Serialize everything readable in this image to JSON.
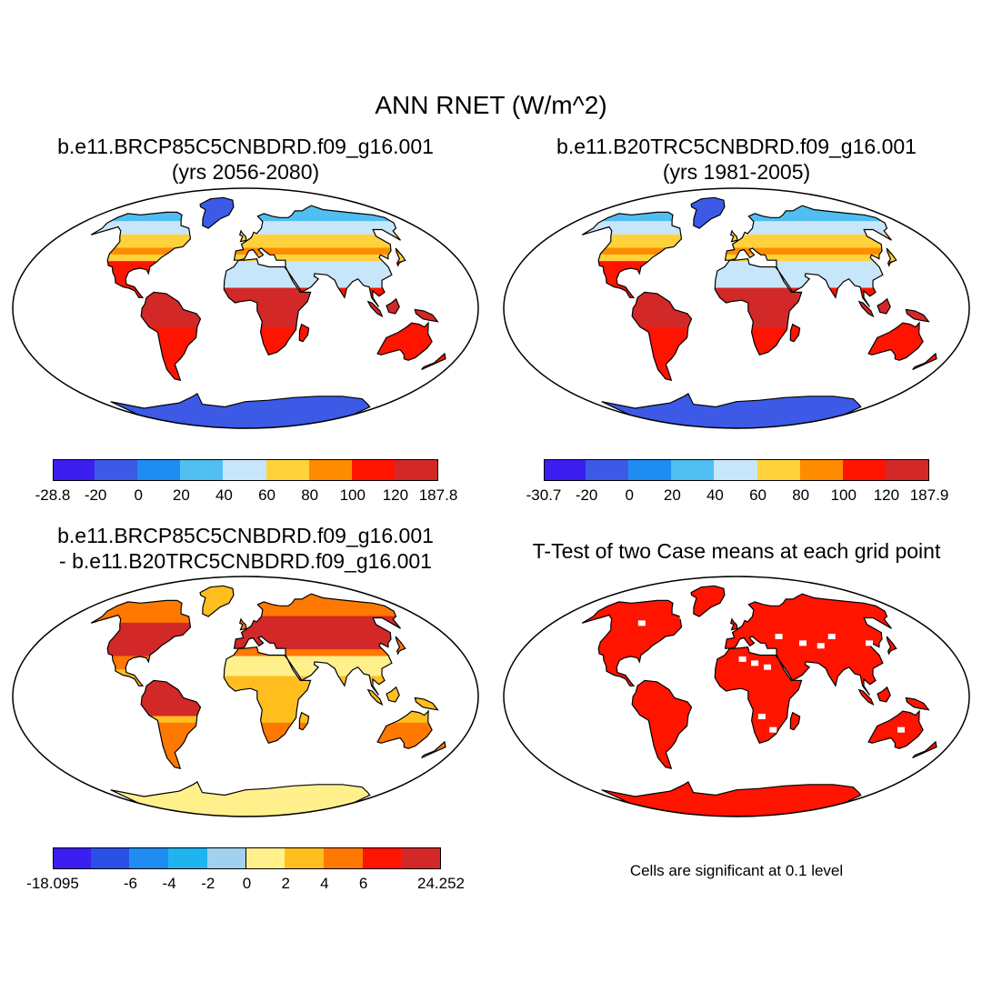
{
  "figure": {
    "title": "ANN RNET (W/m^2)",
    "note": "Cells are significant at 0.1 level"
  },
  "panels": [
    {
      "id": "test-case",
      "title_line1": "b.e11.BRCP85C5CNBDRD.f09_g16.001",
      "title_line2": "(yrs 2056-2080)",
      "palette": "abs",
      "colorbar": {
        "colors": [
          "#3c1ef0",
          "#3c5ae6",
          "#1e8cf0",
          "#50bef0",
          "#c8e6fa",
          "#ffd23c",
          "#ff8c00",
          "#ff1400",
          "#d22828"
        ],
        "labels": [
          "-28.8",
          "-20",
          "0",
          "20",
          "40",
          "60",
          "80",
          "100",
          "120",
          "187.8"
        ]
      }
    },
    {
      "id": "control-case",
      "title_line1": "b.e11.B20TRC5CNBDRD.f09_g16.001",
      "title_line2": "(yrs 1981-2005)",
      "palette": "abs",
      "colorbar": {
        "colors": [
          "#3c1ef0",
          "#3c5ae6",
          "#1e8cf0",
          "#50bef0",
          "#c8e6fa",
          "#ffd23c",
          "#ff8c00",
          "#ff1400",
          "#d22828"
        ],
        "labels": [
          "-30.7",
          "-20",
          "0",
          "20",
          "40",
          "60",
          "80",
          "100",
          "120",
          "187.9"
        ]
      }
    },
    {
      "id": "difference",
      "title_line1": "b.e11.BRCP85C5CNBDRD.f09_g16.001",
      "title_line2": "- b.e11.B20TRC5CNBDRD.f09_g16.001",
      "palette": "diff",
      "colorbar": {
        "colors": [
          "#3c1ef0",
          "#2850e6",
          "#1e8cf0",
          "#1eb4f0",
          "#a0d2f0",
          "#fff08c",
          "#ffbe1e",
          "#ff7800",
          "#ff1400",
          "#d22828"
        ],
        "labels": [
          "-18.095",
          "",
          "-6",
          "-4",
          "-2",
          "0",
          "2",
          "4",
          "6",
          "",
          "24.252"
        ]
      }
    },
    {
      "id": "t-test",
      "title_line1": "T-Test of two Case means at each grid point",
      "title_line2": "",
      "palette": "ttest"
    }
  ]
}
